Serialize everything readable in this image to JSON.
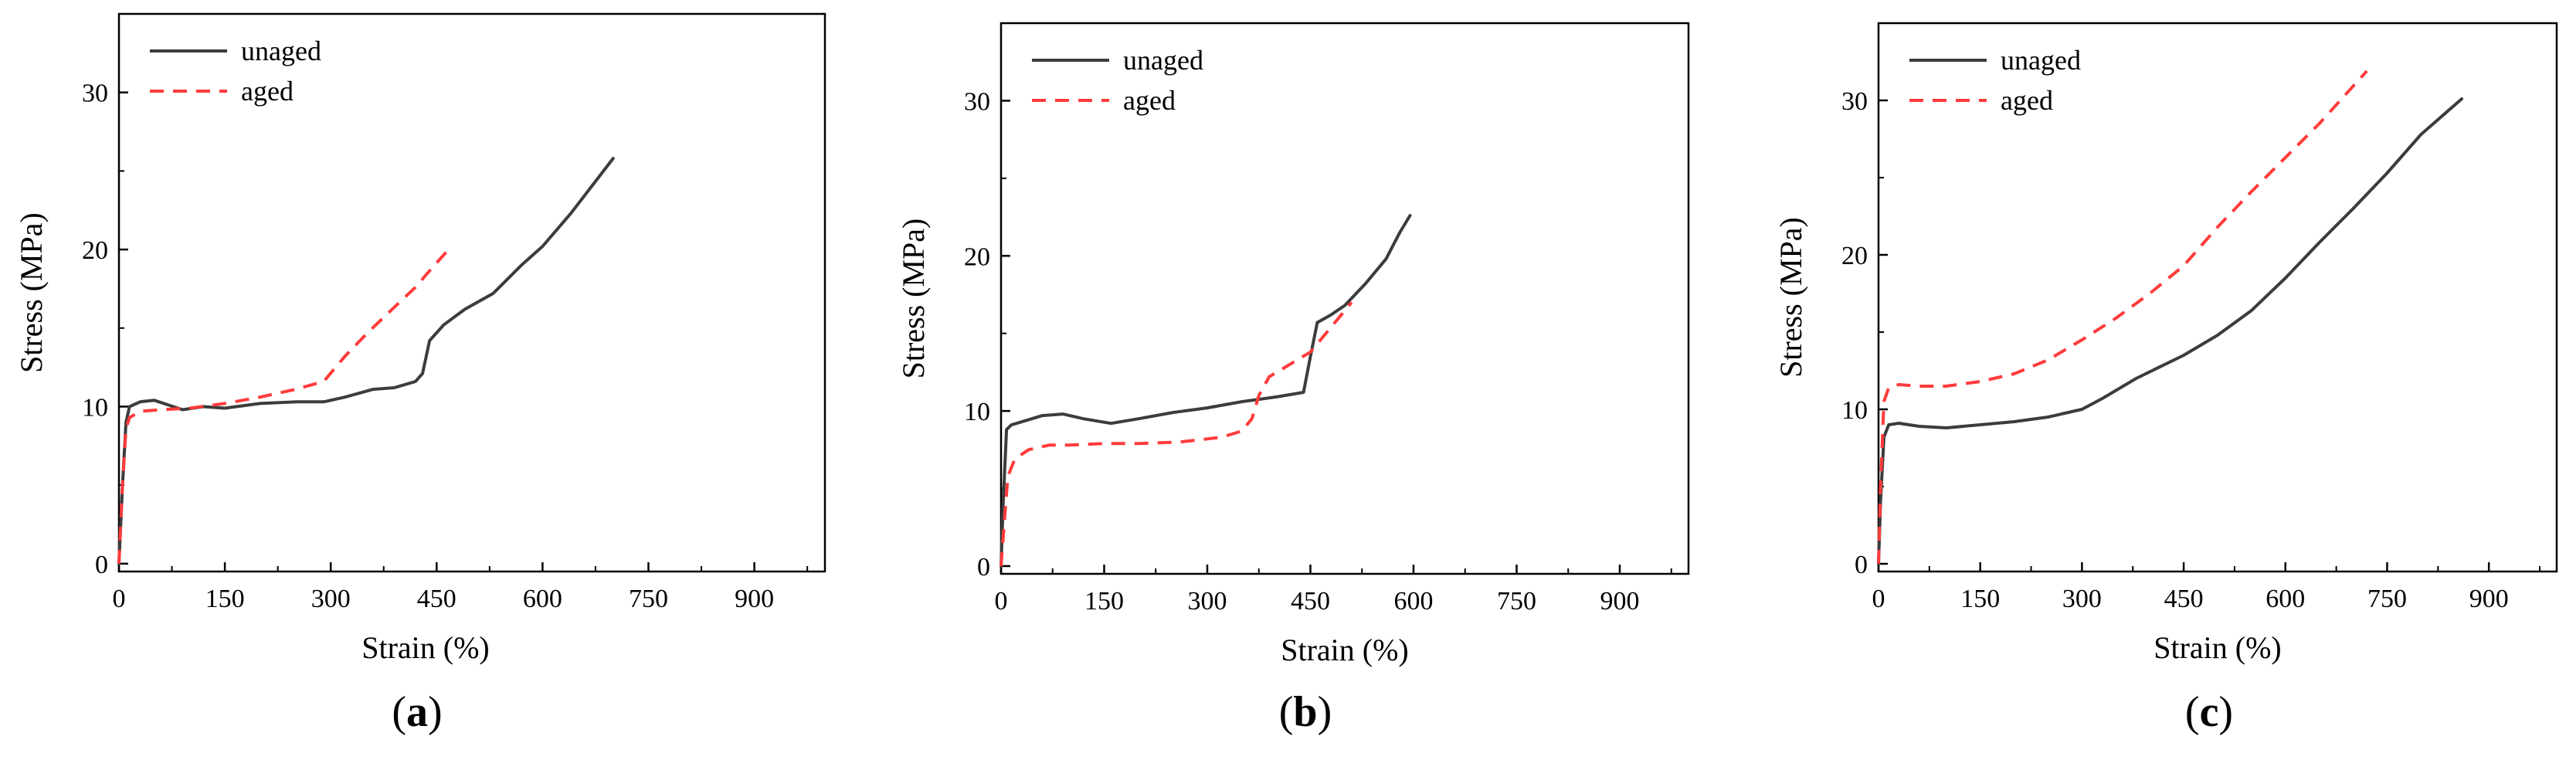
{
  "colors": {
    "unaged": "#3c3c3c",
    "aged": "#ff3b3b",
    "axis": "#000000"
  },
  "chart_data": [
    {
      "type": "line",
      "panel": "a",
      "xlabel": "Strain (%)",
      "ylabel": "Stress (MPa)",
      "xlim": [
        0,
        1000
      ],
      "ylim": [
        -0.5,
        35
      ],
      "xticks": [
        0,
        150,
        300,
        450,
        600,
        750,
        900
      ],
      "yticks": [
        0,
        10,
        20,
        30
      ],
      "legend": "top-left",
      "series": [
        {
          "name": "unaged",
          "style": "solid",
          "x": [
            0,
            5,
            10,
            15,
            30,
            50,
            70,
            90,
            120,
            150,
            200,
            250,
            290,
            320,
            360,
            390,
            420,
            430,
            440,
            460,
            490,
            530,
            570,
            600,
            640,
            700
          ],
          "y": [
            0,
            5,
            9,
            10,
            10.3,
            10.4,
            10.1,
            9.8,
            10.0,
            9.9,
            10.2,
            10.3,
            10.3,
            10.6,
            11.1,
            11.2,
            11.6,
            12.1,
            14.2,
            15.2,
            16.2,
            17.2,
            19.0,
            20.2,
            22.3,
            25.8
          ]
        },
        {
          "name": "aged",
          "style": "dashed",
          "x": [
            0,
            5,
            10,
            15,
            30,
            60,
            100,
            150,
            200,
            250,
            290,
            320,
            350,
            380,
            420,
            445,
            465
          ],
          "y": [
            0,
            5,
            8.6,
            9.3,
            9.7,
            9.8,
            9.9,
            10.2,
            10.6,
            11.1,
            11.6,
            13.2,
            14.6,
            15.9,
            17.6,
            18.9,
            19.9
          ]
        }
      ]
    },
    {
      "type": "line",
      "panel": "b",
      "xlabel": "Strain (%)",
      "ylabel": "Stress (MPa)",
      "xlim": [
        0,
        1000
      ],
      "ylim": [
        -0.5,
        35
      ],
      "xticks": [
        0,
        150,
        300,
        450,
        600,
        750,
        900
      ],
      "yticks": [
        0,
        10,
        20,
        30
      ],
      "legend": "top-left",
      "series": [
        {
          "name": "unaged",
          "style": "solid",
          "x": [
            0,
            3,
            8,
            15,
            30,
            60,
            90,
            120,
            160,
            200,
            250,
            300,
            350,
            400,
            440,
            450,
            460,
            480,
            500,
            530,
            560,
            580,
            595
          ],
          "y": [
            0,
            4,
            8.8,
            9.1,
            9.3,
            9.7,
            9.8,
            9.5,
            9.2,
            9.5,
            9.9,
            10.2,
            10.6,
            10.9,
            11.2,
            13.5,
            15.7,
            16.2,
            16.8,
            18.2,
            19.8,
            21.5,
            22.6
          ]
        },
        {
          "name": "aged",
          "style": "dashed",
          "x": [
            0,
            5,
            10,
            20,
            40,
            70,
            100,
            150,
            200,
            260,
            320,
            350,
            365,
            375,
            390,
            420,
            450,
            480,
            510
          ],
          "y": [
            0,
            3,
            5.8,
            6.9,
            7.5,
            7.8,
            7.8,
            7.9,
            7.9,
            8.0,
            8.3,
            8.7,
            9.5,
            11.0,
            12.2,
            13.0,
            13.8,
            15.4,
            17.0
          ]
        }
      ]
    },
    {
      "type": "line",
      "panel": "c",
      "xlabel": "Strain (%)",
      "ylabel": "Stress (MPa)",
      "xlim": [
        0,
        1000
      ],
      "ylim": [
        -0.5,
        35
      ],
      "xticks": [
        0,
        150,
        300,
        450,
        600,
        750,
        900
      ],
      "yticks": [
        0,
        10,
        20,
        30
      ],
      "legend": "top-left",
      "series": [
        {
          "name": "unaged",
          "style": "solid",
          "x": [
            0,
            3,
            8,
            15,
            30,
            60,
            100,
            150,
            200,
            250,
            300,
            330,
            380,
            450,
            500,
            550,
            600,
            650,
            700,
            750,
            800,
            860
          ],
          "y": [
            0,
            4,
            8.2,
            9.0,
            9.1,
            8.9,
            8.8,
            9.0,
            9.2,
            9.5,
            10.0,
            10.7,
            12.0,
            13.5,
            14.8,
            16.4,
            18.5,
            20.8,
            23.0,
            25.3,
            27.8,
            30.1
          ]
        },
        {
          "name": "aged",
          "style": "dashed",
          "x": [
            0,
            3,
            8,
            15,
            30,
            60,
            100,
            150,
            200,
            250,
            300,
            350,
            400,
            450,
            500,
            550,
            600,
            650,
            720
          ],
          "y": [
            0,
            5,
            10.5,
            11.4,
            11.6,
            11.5,
            11.5,
            11.8,
            12.3,
            13.2,
            14.5,
            15.9,
            17.5,
            19.3,
            21.8,
            24.1,
            26.3,
            28.5,
            31.9
          ]
        }
      ]
    }
  ],
  "legend_labels": {
    "unaged": "unaged",
    "aged": "aged"
  },
  "panel_labels": [
    {
      "open": "(",
      "letter": "a",
      "close": ")"
    },
    {
      "open": "(",
      "letter": "b",
      "close": ")"
    },
    {
      "open": "(",
      "letter": "c",
      "close": ")"
    }
  ]
}
